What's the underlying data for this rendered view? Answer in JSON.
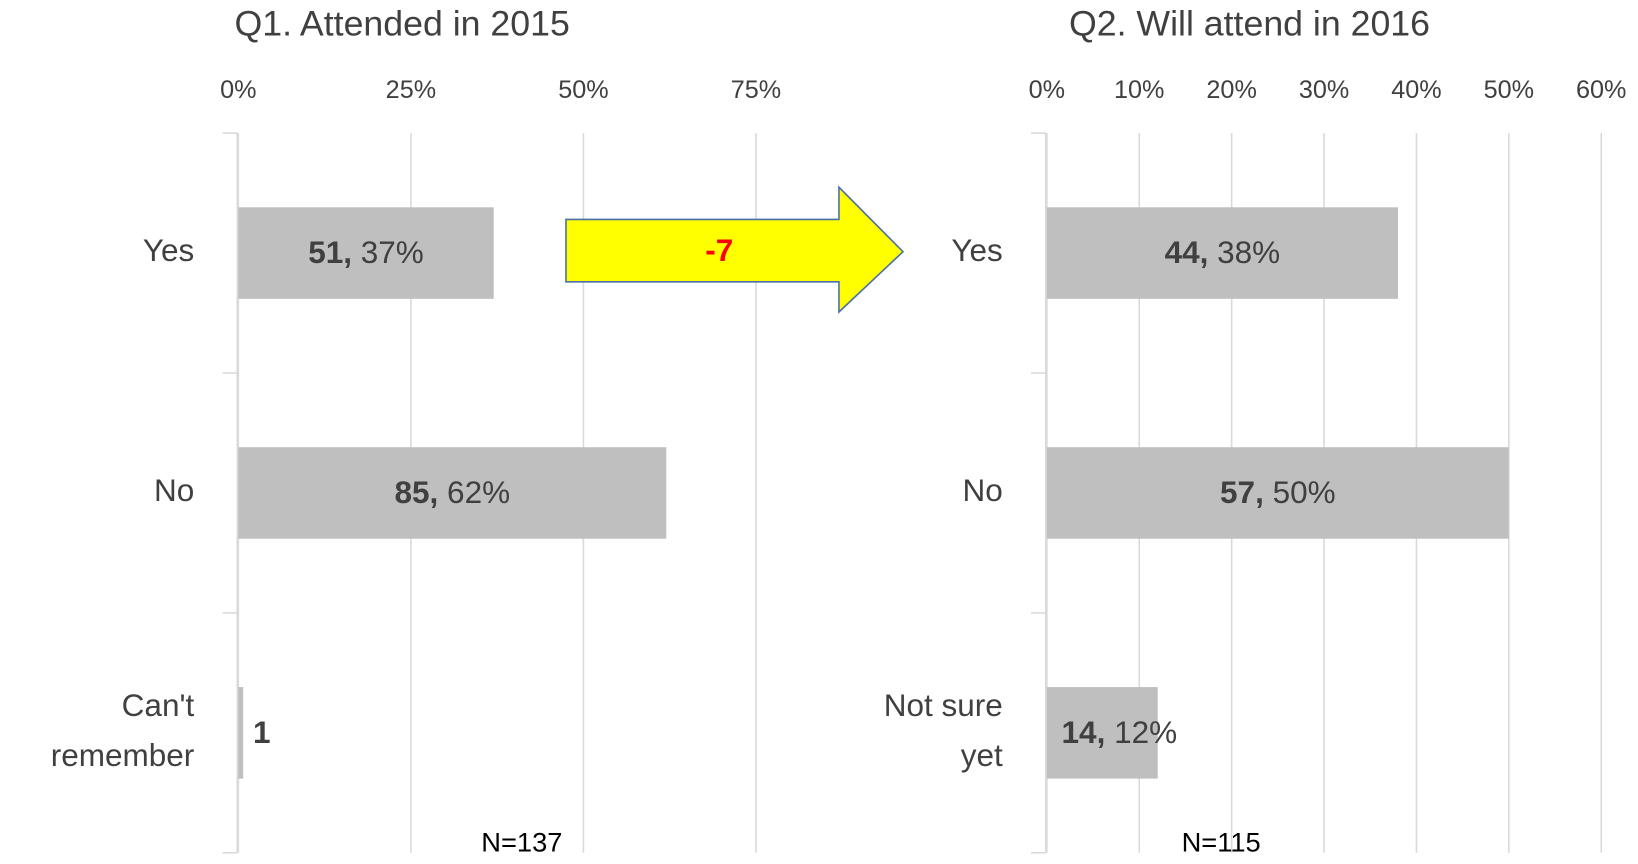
{
  "chart_data": [
    {
      "type": "barh",
      "title": "Q1. Attended in 2015",
      "categories": [
        "Yes",
        "No",
        "Can't remember"
      ],
      "values": [
        37,
        62,
        0.7
      ],
      "value_labels": [
        "51, 37%",
        "85, 62%",
        "1"
      ],
      "color": "#bfbfbf",
      "xlim": [
        0,
        75
      ],
      "xticks": [
        {
          "value": 0,
          "label": "0%"
        },
        {
          "value": 25,
          "label": "25%"
        },
        {
          "value": 50,
          "label": "50%"
        },
        {
          "value": 75,
          "label": "75%"
        }
      ],
      "grid": true,
      "note": "N=137"
    },
    {
      "type": "barh",
      "title": "Q2. Will attend in 2016",
      "categories": [
        "Yes",
        "No",
        "Not sure yet"
      ],
      "values": [
        38,
        50,
        12
      ],
      "value_labels": [
        "44, 38%",
        "57, 50%",
        "14, 12%"
      ],
      "color": "#bfbfbf",
      "xlim": [
        0,
        60
      ],
      "xticks": [
        {
          "value": 0,
          "label": "0%"
        },
        {
          "value": 10,
          "label": "10%"
        },
        {
          "value": 20,
          "label": "20%"
        },
        {
          "value": 30,
          "label": "30%"
        },
        {
          "value": 40,
          "label": "40%"
        },
        {
          "value": 50,
          "label": "50%"
        },
        {
          "value": 60,
          "label": "60%"
        }
      ],
      "grid": true,
      "note": "N=115"
    }
  ],
  "arrow_label": "-7"
}
